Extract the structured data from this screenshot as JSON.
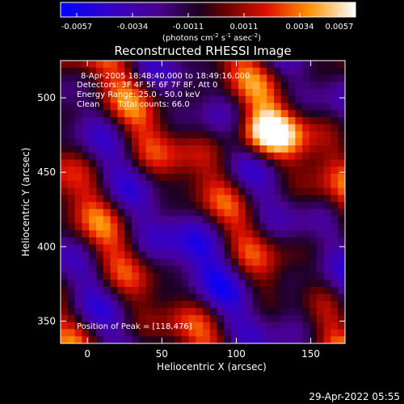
{
  "chart_data": {
    "type": "heatmap",
    "title": "Reconstructed RHESSI Image",
    "xlabel": "Heliocentric X (arcsec)",
    "ylabel": "Heliocentric Y (arcsec)",
    "xlim": [
      -18,
      173
    ],
    "ylim": [
      335,
      525
    ],
    "xticks": [
      0,
      50,
      100,
      150
    ],
    "yticks": [
      350,
      400,
      450,
      500
    ],
    "colorbar": {
      "range": [
        -0.0057,
        0.0057
      ],
      "tick_labels": [
        "-0.0057",
        "-0.0034",
        "-0.0011",
        "0.0011",
        "0.0034",
        "0.0057"
      ],
      "unit_label": "(photons cm",
      "unit_sup1": "-2",
      "unit_mid": " s",
      "unit_sup2": "-1",
      "unit_mid2": " asec",
      "unit_sup3": "-2",
      "unit_end": ")",
      "colormap": [
        "#0000ff",
        "#4a00b0",
        "#2a003a",
        "#8a0000",
        "#ff3000",
        "#ffa000",
        "#ffffff"
      ]
    },
    "annotations": {
      "line1": "8-Apr-2005 18:48:40.000 to 18:49:16.000",
      "line2": "Detectors: 3F 4F 5F 6F 7F 8F, Att 0",
      "line3": "Energy Range: 25.0 - 50.0 keV",
      "line4_a": "Clean",
      "line4_b": "Total counts: 66.0",
      "peak": "Position of Peak = [118,476]"
    },
    "peak": {
      "x": 118,
      "y": 476
    },
    "grid": false
  },
  "footer": {
    "timestamp": "29-Apr-2022 05:55"
  }
}
